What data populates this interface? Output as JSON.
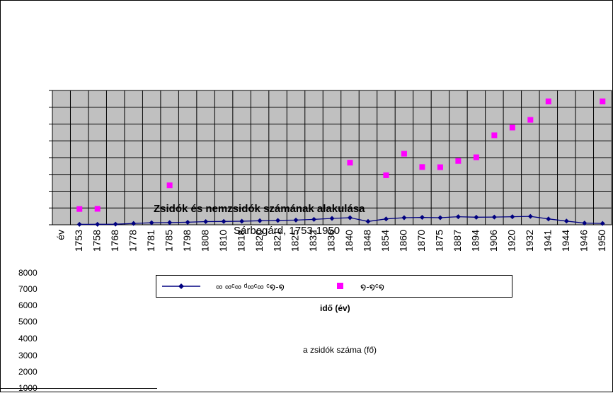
{
  "chart_data": {
    "type": "line",
    "title": "Zsidók és nemzsidók számának alakulása",
    "subtitle": "Sárbogárd, 1753-1950",
    "xlabel": "idő (év)",
    "ylabel": "a zsidók száma (fő)",
    "x_axis_start_label": "év",
    "categories": [
      "1753",
      "1758",
      "1768",
      "1778",
      "1781",
      "1785",
      "1798",
      "1808",
      "1810",
      "1818",
      "1820",
      "1821",
      "1825",
      "1832",
      "1836",
      "1840",
      "1848",
      "1854",
      "1860",
      "1870",
      "1875",
      "1887",
      "1894",
      "1906",
      "1920",
      "1932",
      "1941",
      "1944",
      "1946",
      "1950"
    ],
    "y_ticks": [
      "8000",
      "7000",
      "6000",
      "5000",
      "4000",
      "3000",
      "2000",
      "1000"
    ],
    "series": [
      {
        "name": "∞ ∞ᶜ∞ ᵈ∞ᶜ∞ ᶜ໑-໑",
        "color": "#000080",
        "marker": "diamond",
        "line": true,
        "values": [
          25,
          28,
          35,
          80,
          120,
          130,
          150,
          190,
          200,
          210,
          240,
          260,
          280,
          320,
          380,
          420,
          200,
          350,
          420,
          440,
          420,
          480,
          450,
          460,
          480,
          500,
          350,
          220,
          100,
          80
        ]
      },
      {
        "name": "໑-໑ᶜ໑",
        "color": "#ff00ff",
        "marker": "square",
        "line": false,
        "values": [
          940,
          950,
          null,
          null,
          null,
          2350,
          null,
          null,
          null,
          null,
          null,
          null,
          null,
          null,
          null,
          3700,
          null,
          2950,
          4230,
          3440,
          3430,
          3800,
          4020,
          5330,
          5790,
          6250,
          7350,
          null,
          null,
          7350
        ]
      }
    ]
  }
}
